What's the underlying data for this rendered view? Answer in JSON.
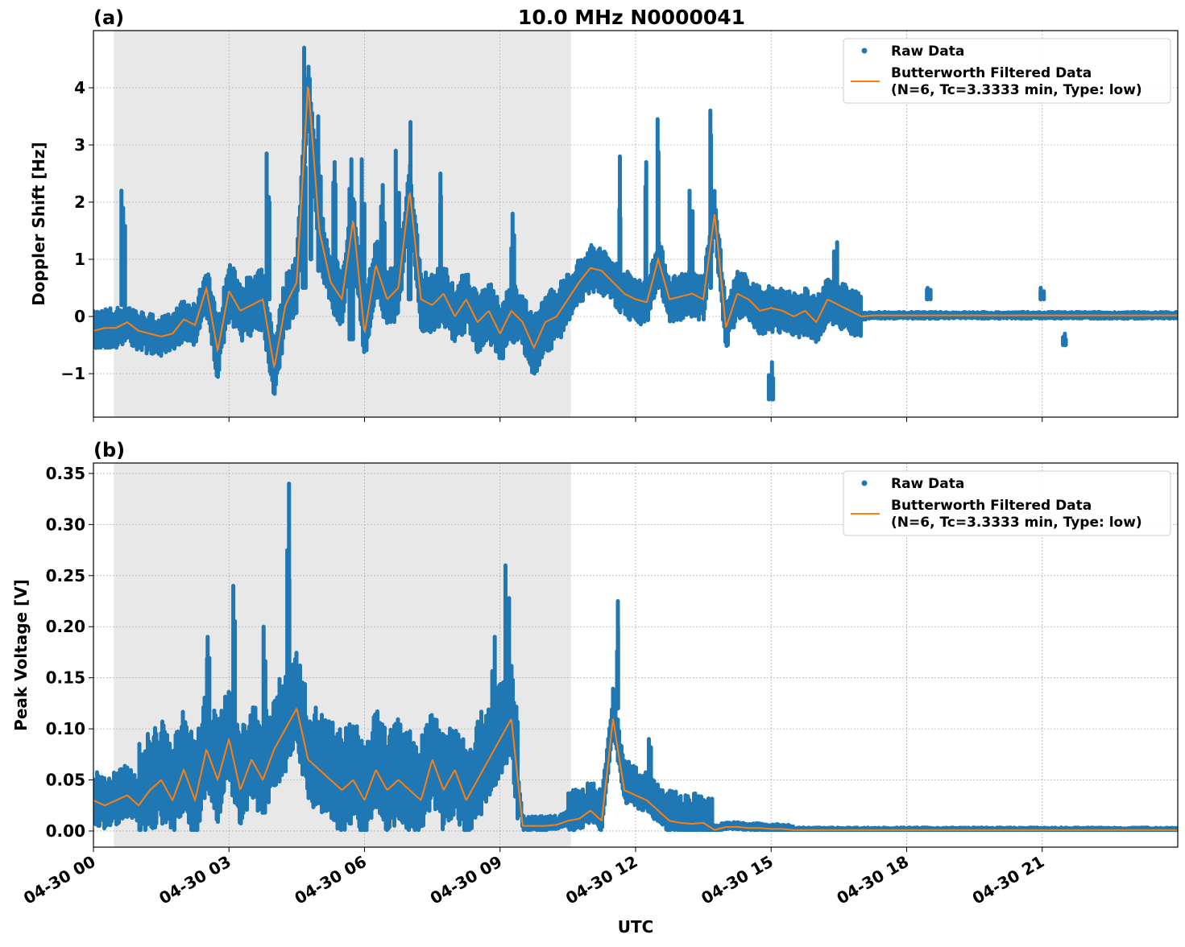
{
  "title": "10.0 MHz N0000041",
  "xlabel": "UTC",
  "xlim": [
    "04-30 00:00",
    "05-01 00:00"
  ],
  "xticks": [
    {
      "t": "00:00",
      "label": "04-30 00"
    },
    {
      "t": "03:00",
      "label": "04-30 03"
    },
    {
      "t": "06:00",
      "label": "04-30 06"
    },
    {
      "t": "09:00",
      "label": "04-30 09"
    },
    {
      "t": "12:00",
      "label": "04-30 12"
    },
    {
      "t": "15:00",
      "label": "04-30 15"
    },
    {
      "t": "18:00",
      "label": "04-30 18"
    },
    {
      "t": "21:00",
      "label": "04-30 21"
    }
  ],
  "shaded_interval": [
    "00:27",
    "10:34"
  ],
  "colors": {
    "raw": "#1f77b4",
    "filtered": "#ff7f0e",
    "shade": "#e8e8e8",
    "grid": "#b0b0b0"
  },
  "legend": {
    "placement": "upper right",
    "raw_label": "Raw Data",
    "filtered_label_1": "Butterworth Filtered Data",
    "filtered_label_2": "(N=6, Tc=3.3333 min, Type: low)"
  },
  "chart_data": [
    {
      "type": "scatter+line",
      "panel_label": "(a)",
      "ylabel": "Doppler Shift [Hz]",
      "ylim": [
        -1.76,
        5.0
      ],
      "yticks": [
        {
          "v": -1,
          "label": "−1"
        },
        {
          "v": 0,
          "label": "0"
        },
        {
          "v": 1,
          "label": "1"
        },
        {
          "v": 2,
          "label": "2"
        },
        {
          "v": 3,
          "label": "3"
        },
        {
          "v": 4,
          "label": "4"
        }
      ],
      "grid": true,
      "filtered_step_minutes": 15,
      "filtered": [
        -0.25,
        -0.2,
        -0.2,
        -0.1,
        -0.25,
        -0.3,
        -0.35,
        -0.3,
        -0.05,
        -0.15,
        0.5,
        -0.6,
        0.45,
        0.1,
        0.2,
        0.3,
        -0.9,
        0.2,
        0.6,
        4.1,
        1.5,
        0.6,
        0.3,
        1.7,
        -0.3,
        0.9,
        0.3,
        0.5,
        2.2,
        0.3,
        0.2,
        0.4,
        0.0,
        0.3,
        -0.1,
        0.1,
        -0.3,
        0.1,
        -0.1,
        -0.55,
        -0.1,
        0.0,
        0.3,
        0.6,
        0.85,
        0.8,
        0.6,
        0.4,
        0.3,
        0.25,
        1.0,
        0.3,
        0.35,
        0.4,
        0.3,
        1.8,
        -0.2,
        0.4,
        0.3,
        0.1,
        0.15,
        0.1,
        0.0,
        0.1,
        -0.1,
        0.3,
        0.2,
        0.1,
        0.0,
        0.02,
        0.02,
        0.02,
        0.02,
        0.02,
        0.02,
        0.02,
        0.02,
        0.02,
        0.02,
        0.02,
        0.02,
        0.02,
        0.02,
        0.02,
        0.02,
        0.02,
        0.02,
        0.02,
        0.02,
        0.02,
        0.02,
        0.02,
        0.02,
        0.02,
        0.02,
        0.02
      ],
      "raw_envelope": [
        {
          "from": "00:00",
          "to": "02:30",
          "below": 0.3,
          "above": 0.3
        },
        {
          "from": "02:30",
          "to": "10:30",
          "below": 0.45,
          "above": 0.45
        },
        {
          "from": "10:30",
          "to": "17:00",
          "below": 0.35,
          "above": 0.35
        },
        {
          "from": "17:00",
          "to": "24:00",
          "below": 0.05,
          "above": 0.05
        }
      ],
      "raw_spikes": [
        {
          "t": "00:39",
          "from": 0.2,
          "to": 2.2
        },
        {
          "t": "03:53",
          "from": 0.3,
          "to": 2.85
        },
        {
          "t": "04:40",
          "from": 0.5,
          "to": 4.7
        },
        {
          "t": "04:50",
          "from": 1.0,
          "to": 3.7
        },
        {
          "t": "05:00",
          "from": 0.8,
          "to": 3.5
        },
        {
          "t": "05:20",
          "from": 0.5,
          "to": 2.7
        },
        {
          "t": "05:43",
          "from": -0.4,
          "to": 2.75
        },
        {
          "t": "05:57",
          "from": 0.3,
          "to": 2.75
        },
        {
          "t": "06:24",
          "from": 0.2,
          "to": 2.3
        },
        {
          "t": "06:43",
          "from": 0.3,
          "to": 2.9
        },
        {
          "t": "06:58",
          "from": 0.3,
          "to": 3.4
        },
        {
          "t": "07:40",
          "from": 0.3,
          "to": 2.5
        },
        {
          "t": "09:18",
          "from": 0.2,
          "to": 1.8
        },
        {
          "t": "11:38",
          "from": 0.5,
          "to": 2.8
        },
        {
          "t": "12:11",
          "from": 0.5,
          "to": 2.7
        },
        {
          "t": "12:29",
          "from": 0.5,
          "to": 3.45
        },
        {
          "t": "13:13",
          "from": 0.5,
          "to": 2.2
        },
        {
          "t": "13:42",
          "from": 0.5,
          "to": 3.6
        },
        {
          "t": "15:00",
          "from": -1.45,
          "to": -0.8
        },
        {
          "t": "16:25",
          "from": 0.5,
          "to": 1.3
        },
        {
          "t": "18:30",
          "from": 0.3,
          "to": 0.5
        },
        {
          "t": "21:00",
          "from": 0.3,
          "to": 0.5
        },
        {
          "t": "21:30",
          "from": -0.5,
          "to": -0.3
        }
      ]
    },
    {
      "type": "scatter+line",
      "panel_label": "(b)",
      "ylabel": "Peak Voltage [V]",
      "ylim": [
        -0.0158,
        0.3602
      ],
      "yticks": [
        {
          "v": 0,
          "label": "0.00"
        },
        {
          "v": 0.05,
          "label": "0.05"
        },
        {
          "v": 0.1,
          "label": "0.10"
        },
        {
          "v": 0.15,
          "label": "0.15"
        },
        {
          "v": 0.2,
          "label": "0.20"
        },
        {
          "v": 0.25,
          "label": "0.25"
        },
        {
          "v": 0.3,
          "label": "0.30"
        },
        {
          "v": 0.35,
          "label": "0.35"
        }
      ],
      "grid": true,
      "filtered_step_minutes": 15,
      "filtered": [
        0.03,
        0.025,
        0.03,
        0.035,
        0.025,
        0.04,
        0.05,
        0.03,
        0.06,
        0.03,
        0.08,
        0.05,
        0.09,
        0.04,
        0.07,
        0.05,
        0.08,
        0.1,
        0.12,
        0.07,
        0.06,
        0.05,
        0.04,
        0.05,
        0.03,
        0.06,
        0.04,
        0.05,
        0.04,
        0.03,
        0.07,
        0.04,
        0.06,
        0.03,
        0.05,
        0.07,
        0.09,
        0.11,
        0.005,
        0.005,
        0.005,
        0.006,
        0.01,
        0.012,
        0.02,
        0.01,
        0.11,
        0.04,
        0.035,
        0.03,
        0.02,
        0.01,
        0.008,
        0.007,
        0.008,
        0.001,
        0.004,
        0.004,
        0.003,
        0.003,
        0.002,
        0.002,
        0.001,
        0.001,
        0.001,
        0.001,
        0.001,
        0.001,
        0.001,
        0.001,
        0.001,
        0.001,
        0.001,
        0.001,
        0.001,
        0.001,
        0.001,
        0.001,
        0.001,
        0.001,
        0.001,
        0.001,
        0.001,
        0.001,
        0.001,
        0.001,
        0.001,
        0.001,
        0.001,
        0.001,
        0.001,
        0.001,
        0.001,
        0.001,
        0.001,
        0.001
      ],
      "raw_envelope": [
        {
          "from": "00:00",
          "to": "01:00",
          "below": 0.02,
          "above": 0.025
        },
        {
          "from": "01:00",
          "to": "09:24",
          "below": 0.035,
          "above": 0.05
        },
        {
          "from": "09:24",
          "to": "10:30",
          "below": 0.004,
          "above": 0.008
        },
        {
          "from": "10:30",
          "to": "13:42",
          "below": 0.01,
          "above": 0.025
        },
        {
          "from": "13:42",
          "to": "15:30",
          "below": 0.002,
          "above": 0.004
        },
        {
          "from": "15:30",
          "to": "24:00",
          "below": 0.001,
          "above": 0.002
        }
      ],
      "raw_spikes": [
        {
          "t": "02:33",
          "from": 0.1,
          "to": 0.19
        },
        {
          "t": "03:05",
          "from": 0.1,
          "to": 0.24
        },
        {
          "t": "03:48",
          "from": 0.1,
          "to": 0.2
        },
        {
          "t": "04:18",
          "from": 0.15,
          "to": 0.34
        },
        {
          "t": "08:50",
          "from": 0.1,
          "to": 0.19
        },
        {
          "t": "09:09",
          "from": 0.12,
          "to": 0.26
        },
        {
          "t": "11:36",
          "from": 0.12,
          "to": 0.225
        },
        {
          "t": "12:20",
          "from": 0.05,
          "to": 0.09
        }
      ]
    }
  ]
}
